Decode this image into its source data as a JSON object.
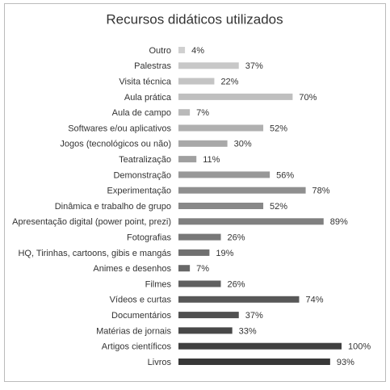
{
  "chart_data": {
    "type": "bar",
    "orientation": "horizontal",
    "title": "Recursos didáticos utilizados",
    "categories": [
      "Outro",
      "Palestras",
      "Visita técnica",
      "Aula prática",
      "Aula de campo",
      "Softwares e/ou aplicativos",
      "Jogos (tecnológicos ou não)",
      "Teatralização",
      "Demonstração",
      "Experimentação",
      "Dinâmica e trabalho de grupo",
      "Apresentação digital (power point, prezi)",
      "Fotografias",
      "HQ, Tirinhas, cartoons, gibis e mangás",
      "Animes e desenhos",
      "Filmes",
      "Vídeos e curtas",
      "Documentários",
      "Matérias de jornais",
      "Artigos científicos",
      "Livros"
    ],
    "values": [
      4,
      37,
      22,
      70,
      7,
      52,
      30,
      11,
      56,
      78,
      52,
      89,
      26,
      19,
      7,
      26,
      74,
      37,
      33,
      100,
      93
    ],
    "value_labels": [
      "4%",
      "37%",
      "22%",
      "70%",
      "7%",
      "52%",
      "30%",
      "11%",
      "56%",
      "78%",
      "52%",
      "89%",
      "26%",
      "19%",
      "7%",
      "26%",
      "74%",
      "37%",
      "33%",
      "100%",
      "93%"
    ],
    "colors": [
      "#d0d0d0",
      "#c8c8c8",
      "#c4c4c4",
      "#bfbfbf",
      "#bababa",
      "#b0b0b0",
      "#a8a8a8",
      "#a0a0a0",
      "#989898",
      "#8f8f8f",
      "#888888",
      "#808080",
      "#787878",
      "#707070",
      "#686868",
      "#606060",
      "#585858",
      "#505050",
      "#484848",
      "#404040",
      "#383838"
    ]
  }
}
